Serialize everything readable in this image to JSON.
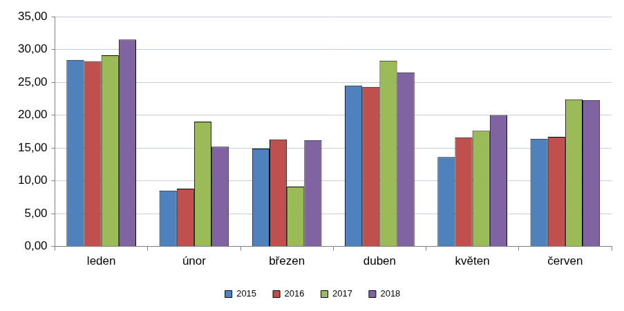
{
  "chart_data": {
    "type": "bar",
    "categories": [
      "leden",
      "únor",
      "březen",
      "duben",
      "květen",
      "červen"
    ],
    "series": [
      {
        "name": "2015",
        "color": "#4f81bd",
        "values": [
          28.4,
          8.5,
          14.9,
          24.5,
          13.6,
          16.4
        ]
      },
      {
        "name": "2016",
        "color": "#c0504d",
        "values": [
          28.2,
          8.8,
          16.3,
          24.3,
          16.6,
          16.7
        ]
      },
      {
        "name": "2017",
        "color": "#9bbb59",
        "values": [
          29.1,
          19.0,
          9.1,
          28.3,
          17.6,
          22.4
        ]
      },
      {
        "name": "2018",
        "color": "#8064a2",
        "values": [
          31.5,
          15.2,
          16.2,
          26.5,
          20.0,
          22.3
        ]
      }
    ],
    "ylim": [
      0,
      35
    ],
    "yticks": [
      {
        "value": 0,
        "label": "0,00"
      },
      {
        "value": 5,
        "label": "5,00"
      },
      {
        "value": 10,
        "label": "10,00"
      },
      {
        "value": 15,
        "label": "15,00"
      },
      {
        "value": 20,
        "label": "20,00"
      },
      {
        "value": 25,
        "label": "25,00"
      },
      {
        "value": 30,
        "label": "30,00"
      },
      {
        "value": 35,
        "label": "35,00"
      }
    ],
    "grid": true,
    "legend": "bottom"
  }
}
